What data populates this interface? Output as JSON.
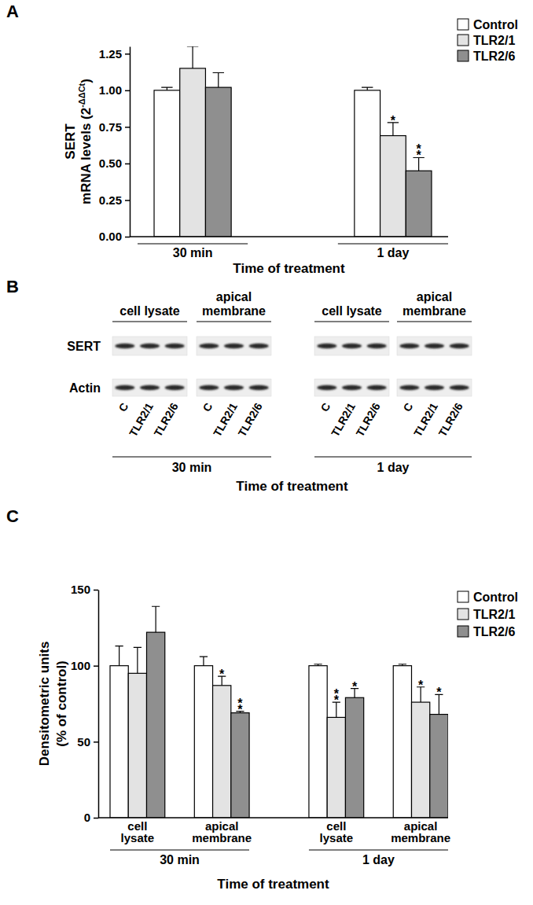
{
  "chart_data": [
    {
      "type": "bar",
      "panel_label": "A",
      "categories": [
        "30 min",
        "1 day"
      ],
      "x_label": "Time of treatment",
      "y_label": [
        "SERT",
        "mRNA levels (2"
      ],
      "y_label_superscript": "-ΔΔCt",
      "y_label_suffix": ")",
      "ylim": [
        0,
        1.3
      ],
      "yticks": [
        {
          "value": 0,
          "label": "0.00"
        },
        {
          "value": 0.25,
          "label": "0.25"
        },
        {
          "value": 0.5,
          "label": "0.50"
        },
        {
          "value": 0.75,
          "label": "0.75"
        },
        {
          "value": 1,
          "label": "1.00"
        },
        {
          "value": 1.25,
          "label": "1.25"
        }
      ],
      "legend": "top-right",
      "series": [
        {
          "name": "Control",
          "color": "#ffffff",
          "values": [
            1.0,
            1.0
          ],
          "errors": [
            0.02,
            0.02
          ]
        },
        {
          "name": "TLR2/1",
          "color": "#e3e3e3",
          "values": [
            1.15,
            0.69
          ],
          "errors": [
            0.15,
            0.09
          ],
          "significance": [
            null,
            "*"
          ]
        },
        {
          "name": "TLR2/6",
          "color": "#8f8f8f",
          "values": [
            1.02,
            0.45
          ],
          "errors": [
            0.1,
            0.09
          ],
          "significance": [
            null,
            "**"
          ]
        }
      ]
    },
    {
      "type": "blot",
      "panel_label": "B",
      "rows": [
        "SERT",
        "Actin"
      ],
      "groups": [
        {
          "name": "30 min",
          "fractions": [
            "cell lysate",
            "apical\nmembrane"
          ]
        },
        {
          "name": "1 day",
          "fractions": [
            "cell lysate",
            "apical\nmembrane"
          ]
        }
      ],
      "lanes": [
        "C",
        "TLR2/1",
        "TLR2/6"
      ],
      "x_label": "Time of treatment"
    },
    {
      "type": "bar",
      "panel_label": "C",
      "groups": [
        {
          "name": "30 min",
          "categories": [
            "cell\nlysate",
            "apical\nmembrane"
          ]
        },
        {
          "name": "1 day",
          "categories": [
            "cell\nlysate",
            "apical\nmembrane"
          ]
        }
      ],
      "x_label": "Time of treatment",
      "y_label": [
        "Densitometric units",
        "(% of control)"
      ],
      "ylim": [
        0,
        150
      ],
      "yticks": [
        0,
        50,
        100,
        150
      ],
      "legend": "top-right",
      "series": [
        {
          "name": "Control",
          "color": "#ffffff",
          "values": [
            100,
            100,
            100,
            100
          ],
          "errors": [
            13,
            6,
            1,
            1
          ]
        },
        {
          "name": "TLR2/1",
          "color": "#e3e3e3",
          "values": [
            95,
            87,
            66,
            76
          ],
          "errors": [
            17,
            6,
            10,
            10
          ],
          "significance": [
            null,
            "*",
            "**",
            "*"
          ]
        },
        {
          "name": "TLR2/6",
          "color": "#8f8f8f",
          "values": [
            122,
            69,
            79,
            68
          ],
          "errors": [
            17,
            1,
            6,
            13
          ],
          "significance": [
            null,
            "**",
            "*",
            "*"
          ]
        }
      ]
    }
  ]
}
